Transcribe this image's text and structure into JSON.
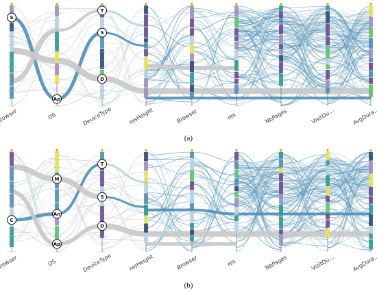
{
  "panels": [
    {
      "caption": "(a)",
      "markers": [
        {
          "axis": 0,
          "label": "S",
          "frac": 0.12
        },
        {
          "axis": 1,
          "label": "Ap",
          "frac": 0.93
        },
        {
          "axis": 2,
          "label": "T",
          "frac": 0.05
        },
        {
          "axis": 2,
          "label": "S",
          "frac": 0.27
        },
        {
          "axis": 2,
          "label": "D",
          "frac": 0.73
        }
      ]
    },
    {
      "caption": "(b)",
      "markers": [
        {
          "axis": 0,
          "label": "C",
          "frac": 0.68
        },
        {
          "axis": 1,
          "label": "M",
          "frac": 0.27
        },
        {
          "axis": 1,
          "label": "An",
          "frac": 0.62
        },
        {
          "axis": 1,
          "label": "Ap",
          "frac": 0.92
        },
        {
          "axis": 2,
          "label": "T",
          "frac": 0.12
        },
        {
          "axis": 2,
          "label": "S",
          "frac": 0.45
        },
        {
          "axis": 2,
          "label": "D",
          "frac": 0.74
        }
      ]
    }
  ],
  "axes": [
    "Browser",
    "OS",
    "DeviceType",
    "resHeight",
    "Browser",
    "res",
    "NbPages",
    "VisitDu...",
    "AvgDura..."
  ],
  "colors": {
    "flow_blue": "#4f8fb5",
    "flow_gray": "#c8c8c8",
    "flow_light": "#b9d3e2",
    "cat_yellow": "#e6e84a",
    "cat_green": "#5ec46a",
    "cat_teal": "#2a9d8f",
    "cat_purple": "#6a4c93",
    "cat_lilac": "#9f8fc0",
    "cat_navy": "#2f4b7c"
  }
}
